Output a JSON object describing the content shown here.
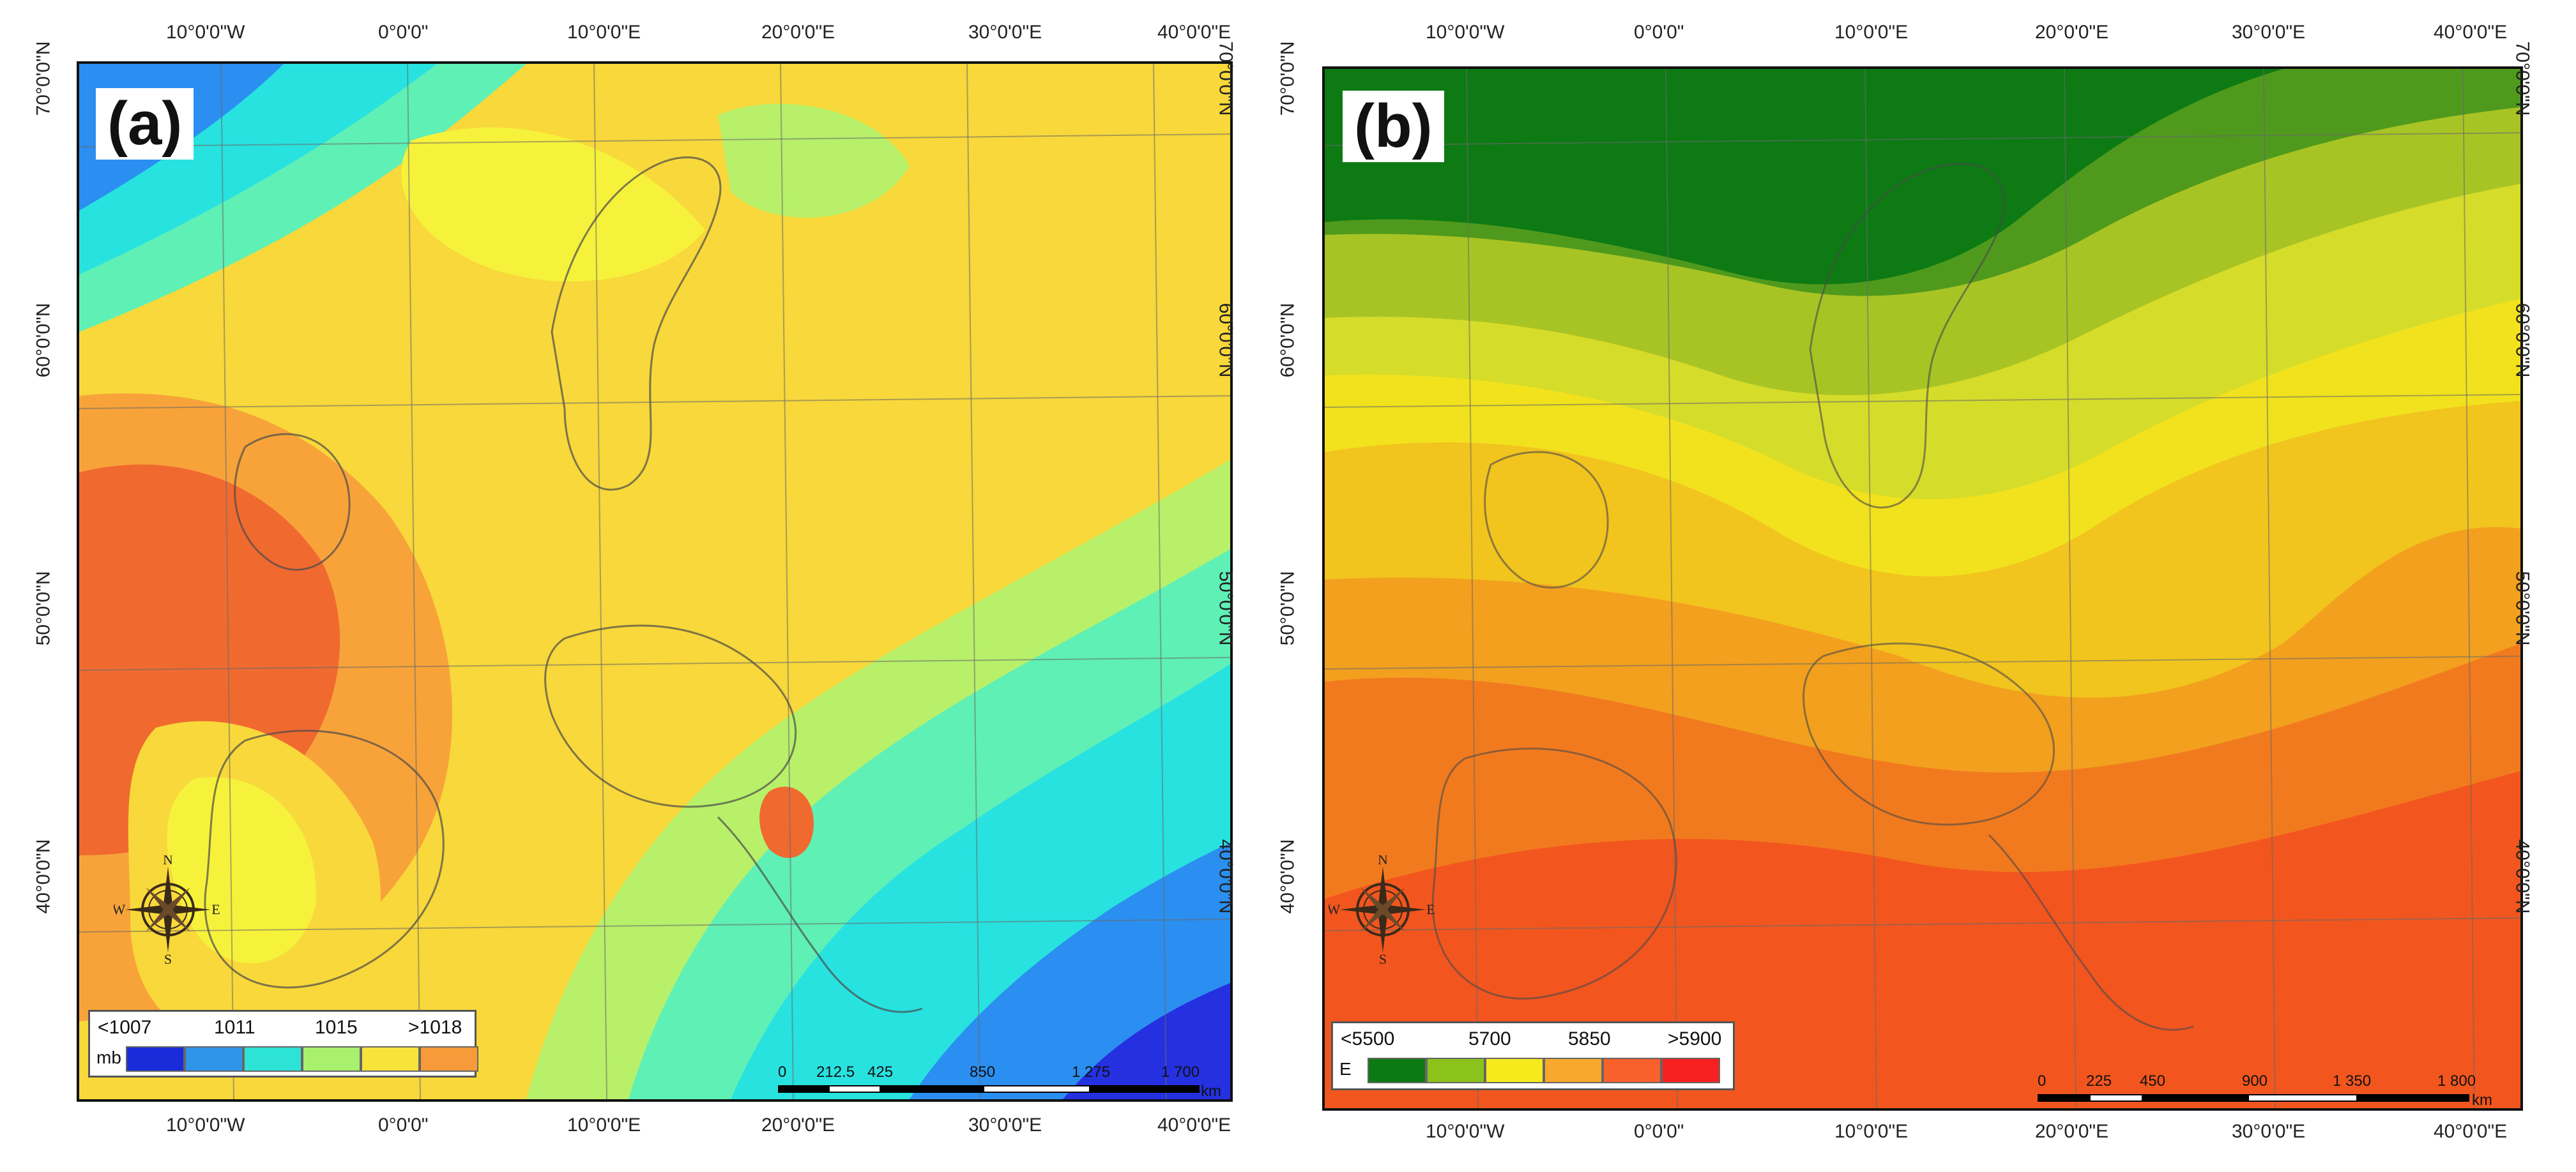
{
  "panels": [
    {
      "label": "(a)",
      "coords": {
        "lon_top": [
          "10°0'0\"W",
          "0°0'0\"",
          "10°0'0\"E",
          "20°0'0\"E",
          "30°0'0\"E",
          "40°0'0\"E"
        ],
        "lon_bottom": [
          "10°0'0\"W",
          "0°0'0\"",
          "10°0'0\"E",
          "20°0'0\"E",
          "30°0'0\"E",
          "40°0'0\"E"
        ],
        "lat": [
          "70°0'0\"N",
          "60°0'0\"N",
          "50°0'0\"N",
          "40°0'0\"N"
        ]
      },
      "compass": {
        "n": "N",
        "s": "S",
        "e": "E",
        "w": "W"
      },
      "legend": {
        "labels": [
          "<1007",
          "1011",
          "1015",
          ">1018"
        ],
        "unit": "mb",
        "colors": [
          "#1a2bd9",
          "#2f95e8",
          "#2de3d6",
          "#a9f06e",
          "#f8e33a",
          "#f79a3a"
        ]
      },
      "scale": {
        "ticks": [
          "0",
          "212.5",
          "425",
          "850",
          "1 275",
          "1 700"
        ],
        "unit": "km"
      },
      "field_colors": {
        "low": "#2530e0",
        "blue": "#2a8ff0",
        "cyan": "#28e2e0",
        "teal": "#5ff0b6",
        "green": "#b8f06a",
        "yellow": "#f6f23c",
        "gold": "#f8d83a",
        "orange": "#f8a33a",
        "red": "#f06a30"
      }
    },
    {
      "label": "(b)",
      "coords": {
        "lon_top": [
          "10°0'0\"W",
          "0°0'0\"",
          "10°0'0\"E",
          "20°0'0\"E",
          "30°0'0\"E",
          "40°0'0\"E"
        ],
        "lon_bottom": [
          "10°0'0\"W",
          "0°0'0\"",
          "10°0'0\"E",
          "20°0'0\"E",
          "30°0'0\"E",
          "40°0'0\"E"
        ],
        "lat": [
          "70°0'0\"N",
          "60°0'0\"N",
          "50°0'0\"N",
          "40°0'0\"N"
        ]
      },
      "compass": {
        "n": "N",
        "s": "S",
        "e": "E",
        "w": "W"
      },
      "legend": {
        "labels": [
          "<5500",
          "5700",
          "5850",
          ">5900"
        ],
        "unit": "E",
        "colors": [
          "#0c7a12",
          "#8cc21c",
          "#f6ea1c",
          "#f8a82c",
          "#f8602c",
          "#f82020"
        ]
      },
      "scale": {
        "ticks": [
          "0",
          "225",
          "450",
          "900",
          "1 350",
          "1 800"
        ],
        "unit": "km"
      },
      "field_colors": {
        "dark_green": "#0d7a14",
        "green": "#4f9a1c",
        "yellow_green": "#a8c424",
        "lime": "#d6dc2a",
        "yellow": "#f2e21e",
        "gold": "#f2c41e",
        "orange": "#f2a01e",
        "deep_orange": "#f27a1e",
        "red_orange": "#f2561e"
      }
    }
  ]
}
